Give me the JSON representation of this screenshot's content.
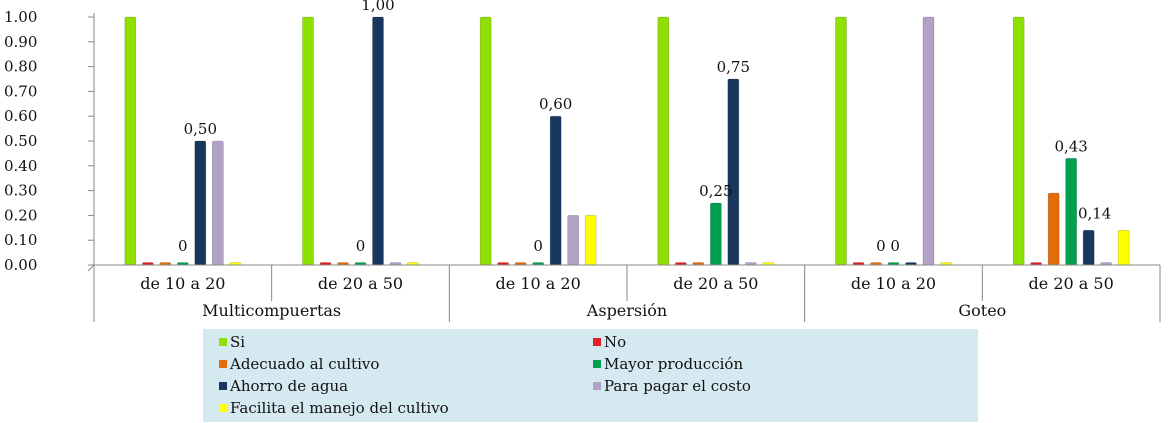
{
  "chart_data": {
    "type": "bar",
    "groups": [
      "Multicompuertas",
      "Aspersión",
      "Goteo"
    ],
    "categories": [
      "de 10 a 20",
      "de 20 a 50",
      "de 10 a 20",
      "de 20 a 50",
      "de 10 a 20",
      "de 20 a 50"
    ],
    "category_group": [
      0,
      0,
      1,
      1,
      2,
      2
    ],
    "ylim": [
      0,
      1
    ],
    "yticks": [
      "0.00",
      "0.10",
      "0.20",
      "0.30",
      "0.40",
      "0.50",
      "0.60",
      "0.70",
      "0.80",
      "0.90",
      "1.00"
    ],
    "grid": false,
    "legend_position": "bottom",
    "series": [
      {
        "name": "Si",
        "color": "#8fe000",
        "values": [
          1,
          1,
          1,
          1,
          1,
          1
        ]
      },
      {
        "name": "No",
        "color": "#e02020",
        "values": [
          0,
          0,
          0,
          0,
          0,
          0
        ]
      },
      {
        "name": "Adecuado al cultivo",
        "color": "#e36c0a",
        "values": [
          0,
          0,
          0,
          0,
          0,
          0.29
        ]
      },
      {
        "name": "Mayor producción",
        "color": "#00a050",
        "values": [
          0,
          0,
          0,
          0.25,
          0,
          0.43
        ]
      },
      {
        "name": "Ahorro de agua",
        "color": "#17375e",
        "values": [
          0.5,
          1,
          0.6,
          0.75,
          0,
          0.14
        ]
      },
      {
        "name": "Para pagar el costo",
        "color": "#b3a2c7",
        "values": [
          0.5,
          0,
          0.2,
          0,
          1,
          0
        ]
      },
      {
        "name": "Facilita el manejo del cultivo",
        "color": "#ffff00",
        "values": [
          0,
          0,
          0.2,
          0,
          0,
          0.14
        ]
      }
    ],
    "data_labels": [
      {
        "text": "0,50",
        "category": 0,
        "series": 4
      },
      {
        "text": "0",
        "category": 0,
        "series": 3
      },
      {
        "text": "1,00",
        "category": 1,
        "series": 4
      },
      {
        "text": "0",
        "category": 1,
        "series": 3
      },
      {
        "text": "0,60",
        "category": 2,
        "series": 4
      },
      {
        "text": "0",
        "category": 2,
        "series": 3
      },
      {
        "text": "0,25",
        "category": 3,
        "series": 3
      },
      {
        "text": "0,75",
        "category": 3,
        "series": 4
      },
      {
        "text": "0 0",
        "category": 4,
        "series": 3
      },
      {
        "text": "0,43",
        "category": 5,
        "series": 3
      },
      {
        "text": "0,14",
        "category": 5,
        "series": 4
      }
    ]
  }
}
